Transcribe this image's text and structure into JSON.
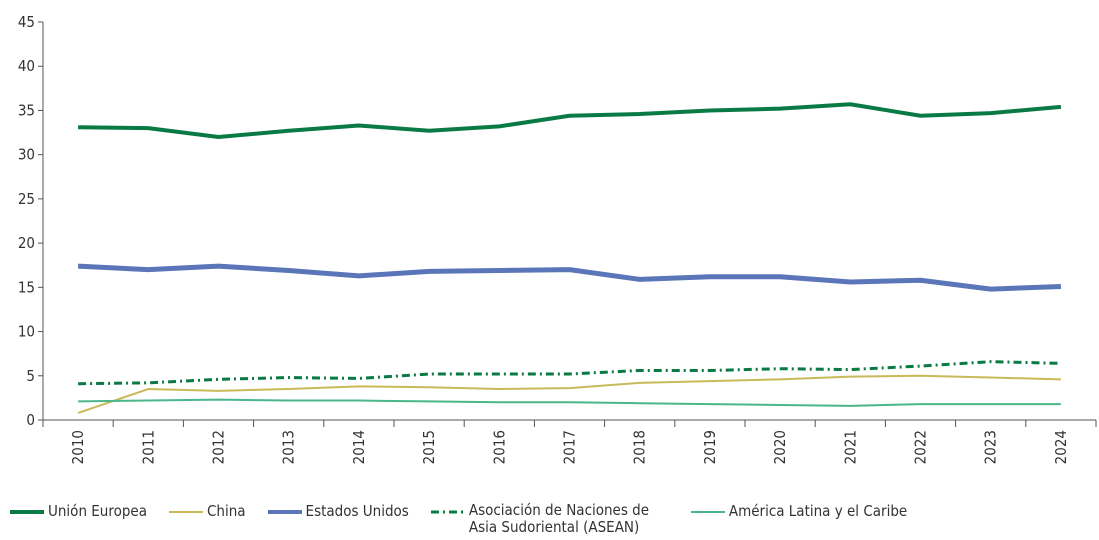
{
  "chart_data": {
    "type": "line",
    "categories": [
      "2010",
      "2011",
      "2012",
      "2013",
      "2014",
      "2015",
      "2016",
      "2017",
      "2018",
      "2019",
      "2020",
      "2021",
      "2022",
      "2023",
      "2024"
    ],
    "series": [
      {
        "name": "Unión Europea",
        "color": "#0a7a45",
        "width": 4,
        "dash": "none",
        "values": [
          33.1,
          33.0,
          32.0,
          32.7,
          33.3,
          32.7,
          33.2,
          34.4,
          34.6,
          35.0,
          35.2,
          35.7,
          34.4,
          34.7,
          35.4
        ]
      },
      {
        "name": "China",
        "color": "#c9b95a",
        "width": 2,
        "dash": "none",
        "values": [
          0.8,
          3.5,
          3.3,
          3.5,
          3.8,
          3.7,
          3.5,
          3.6,
          4.2,
          4.4,
          4.6,
          4.9,
          5.0,
          4.8,
          4.6
        ]
      },
      {
        "name": "Estados Unidos",
        "color": "#5b76b8",
        "width": 5,
        "dash": "none",
        "values": [
          17.4,
          17.0,
          17.4,
          16.9,
          16.3,
          16.8,
          16.9,
          17.0,
          15.9,
          16.2,
          16.2,
          15.6,
          15.8,
          14.8,
          15.1
        ]
      },
      {
        "name": "Asociación de Naciones de Asia Sudoriental (ASEAN)",
        "color": "#0a7a45",
        "width": 3,
        "dash": "8 4 2 4",
        "values": [
          4.1,
          4.2,
          4.6,
          4.8,
          4.7,
          5.2,
          5.2,
          5.2,
          5.6,
          5.6,
          5.8,
          5.7,
          6.1,
          6.6,
          6.4
        ]
      },
      {
        "name": "América Latina y el Caribe",
        "color": "#4bb68a",
        "width": 2,
        "dash": "none",
        "values": [
          2.1,
          2.2,
          2.3,
          2.2,
          2.2,
          2.1,
          2.0,
          2.0,
          1.9,
          1.8,
          1.7,
          1.6,
          1.8,
          1.8,
          1.8
        ]
      }
    ],
    "ylim": [
      0,
      45
    ],
    "yticks": [
      0,
      5,
      10,
      15,
      20,
      25,
      30,
      35,
      40,
      45
    ]
  }
}
